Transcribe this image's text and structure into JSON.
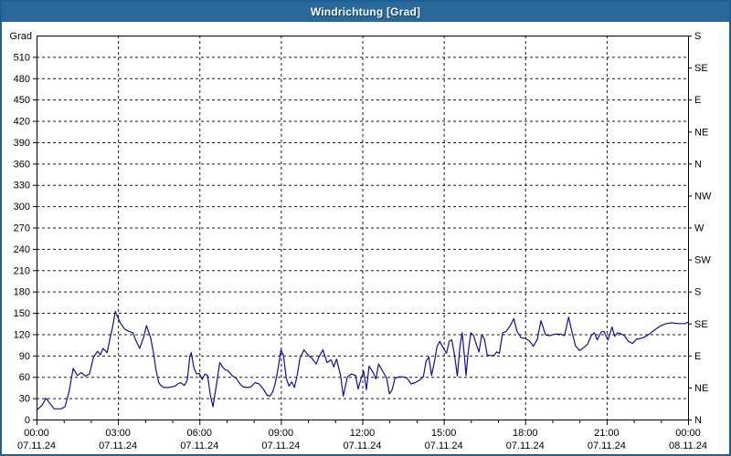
{
  "window": {
    "title": "Windrichtung [Grad]"
  },
  "colors": {
    "titlebar_bg": "#2a699c",
    "frame_border": "#1e5f94",
    "title_text": "#ffffff",
    "title_shadow": "#123f66",
    "plot_bg": "#ffffff",
    "axis": "#000000",
    "grid": "#000000",
    "tick_text": "#000000",
    "line": "#0f0fa8"
  },
  "chart_data": {
    "type": "line",
    "title": "Windrichtung [Grad]",
    "ylabel_left": "Grad",
    "ylim": [
      0,
      540
    ],
    "xlim_hours": [
      0,
      24
    ],
    "grid": "dashed",
    "y_left_ticks": [
      0,
      30,
      60,
      90,
      120,
      150,
      180,
      210,
      240,
      270,
      300,
      330,
      360,
      390,
      420,
      450,
      480,
      510
    ],
    "y_right_ticks": [
      {
        "deg": 0,
        "label": "N"
      },
      {
        "deg": 45,
        "label": "NE"
      },
      {
        "deg": 90,
        "label": "E"
      },
      {
        "deg": 135,
        "label": "SE"
      },
      {
        "deg": 180,
        "label": "S"
      },
      {
        "deg": 225,
        "label": "SW"
      },
      {
        "deg": 270,
        "label": "W"
      },
      {
        "deg": 315,
        "label": "NW"
      },
      {
        "deg": 360,
        "label": "N"
      },
      {
        "deg": 405,
        "label": "NE"
      },
      {
        "deg": 450,
        "label": "E"
      },
      {
        "deg": 495,
        "label": "SE"
      },
      {
        "deg": 540,
        "label": "S"
      }
    ],
    "x_major_ticks": [
      {
        "hours": 0,
        "time": "00:00",
        "date": "07.11.24"
      },
      {
        "hours": 3,
        "time": "03:00",
        "date": "07.11.24"
      },
      {
        "hours": 6,
        "time": "06:00",
        "date": "07.11.24"
      },
      {
        "hours": 9,
        "time": "09:00",
        "date": "07.11.24"
      },
      {
        "hours": 12,
        "time": "12:00",
        "date": "07.11.24"
      },
      {
        "hours": 15,
        "time": "15:00",
        "date": "07.11.24"
      },
      {
        "hours": 18,
        "time": "18:00",
        "date": "07.11.24"
      },
      {
        "hours": 21,
        "time": "21:00",
        "date": "07.11.24"
      },
      {
        "hours": 24,
        "time": "00:00",
        "date": "08.11.24"
      }
    ],
    "x_minor_step_hours": 1,
    "series": [
      {
        "name": "Windrichtung",
        "unit": "Grad",
        "points": [
          [
            0,
            13
          ],
          [
            0.2,
            20
          ],
          [
            0.35,
            30
          ],
          [
            0.5,
            22
          ],
          [
            0.65,
            15
          ],
          [
            0.9,
            15
          ],
          [
            1.05,
            18
          ],
          [
            1.2,
            40
          ],
          [
            1.35,
            72
          ],
          [
            1.5,
            62
          ],
          [
            1.65,
            66
          ],
          [
            1.8,
            61
          ],
          [
            1.95,
            64
          ],
          [
            2.1,
            88
          ],
          [
            2.25,
            96
          ],
          [
            2.35,
            91
          ],
          [
            2.45,
            100
          ],
          [
            2.6,
            94
          ],
          [
            2.7,
            113
          ],
          [
            2.8,
            130
          ],
          [
            2.9,
            152
          ],
          [
            3,
            143
          ],
          [
            3.1,
            135
          ],
          [
            3.25,
            127
          ],
          [
            3.4,
            124
          ],
          [
            3.55,
            122
          ],
          [
            3.65,
            112
          ],
          [
            3.8,
            100
          ],
          [
            3.95,
            116
          ],
          [
            4.05,
            132
          ],
          [
            4.2,
            115
          ],
          [
            4.3,
            96
          ],
          [
            4.4,
            70
          ],
          [
            4.5,
            52
          ],
          [
            4.6,
            47
          ],
          [
            4.7,
            45
          ],
          [
            4.85,
            45
          ],
          [
            5,
            46
          ],
          [
            5.1,
            47
          ],
          [
            5.2,
            50
          ],
          [
            5.3,
            52
          ],
          [
            5.45,
            48
          ],
          [
            5.55,
            55
          ],
          [
            5.65,
            90
          ],
          [
            5.7,
            94
          ],
          [
            5.8,
            72
          ],
          [
            5.9,
            64
          ],
          [
            6,
            65
          ],
          [
            6.1,
            56
          ],
          [
            6.2,
            64
          ],
          [
            6.3,
            62
          ],
          [
            6.4,
            35
          ],
          [
            6.5,
            18
          ],
          [
            6.65,
            55
          ],
          [
            6.75,
            80
          ],
          [
            6.85,
            74
          ],
          [
            6.95,
            70
          ],
          [
            7.05,
            69
          ],
          [
            7.2,
            62
          ],
          [
            7.35,
            58
          ],
          [
            7.5,
            50
          ],
          [
            7.6,
            46
          ],
          [
            7.75,
            45
          ],
          [
            7.9,
            46
          ],
          [
            8.05,
            52
          ],
          [
            8.2,
            50
          ],
          [
            8.35,
            43
          ],
          [
            8.5,
            34
          ],
          [
            8.6,
            33
          ],
          [
            8.7,
            39
          ],
          [
            8.8,
            52
          ],
          [
            8.9,
            72
          ],
          [
            9,
            98
          ],
          [
            9.1,
            90
          ],
          [
            9.2,
            58
          ],
          [
            9.3,
            47
          ],
          [
            9.4,
            53
          ],
          [
            9.5,
            45
          ],
          [
            9.6,
            62
          ],
          [
            9.7,
            86
          ],
          [
            9.85,
            98
          ],
          [
            10,
            91
          ],
          [
            10.15,
            86
          ],
          [
            10.3,
            78
          ],
          [
            10.4,
            88
          ],
          [
            10.55,
            98
          ],
          [
            10.7,
            80
          ],
          [
            10.85,
            84
          ],
          [
            10.95,
            74
          ],
          [
            11.05,
            85
          ],
          [
            11.2,
            62
          ],
          [
            11.3,
            33
          ],
          [
            11.45,
            60
          ],
          [
            11.6,
            64
          ],
          [
            11.75,
            62
          ],
          [
            11.85,
            43
          ],
          [
            11.95,
            57
          ],
          [
            12.05,
            68
          ],
          [
            12.15,
            42
          ],
          [
            12.25,
            75
          ],
          [
            12.4,
            66
          ],
          [
            12.5,
            57
          ],
          [
            12.6,
            78
          ],
          [
            12.75,
            68
          ],
          [
            12.9,
            58
          ],
          [
            13,
            36
          ],
          [
            13.1,
            42
          ],
          [
            13.2,
            58
          ],
          [
            13.35,
            60
          ],
          [
            13.5,
            60
          ],
          [
            13.65,
            58
          ],
          [
            13.8,
            50
          ],
          [
            13.95,
            52
          ],
          [
            14.1,
            55
          ],
          [
            14.25,
            60
          ],
          [
            14.35,
            82
          ],
          [
            14.45,
            88
          ],
          [
            14.55,
            62
          ],
          [
            14.65,
            80
          ],
          [
            14.75,
            102
          ],
          [
            14.85,
            110
          ],
          [
            14.95,
            103
          ],
          [
            15.1,
            93
          ],
          [
            15.2,
            110
          ],
          [
            15.3,
            112
          ],
          [
            15.4,
            90
          ],
          [
            15.5,
            61
          ],
          [
            15.6,
            103
          ],
          [
            15.68,
            122
          ],
          [
            15.76,
            90
          ],
          [
            15.82,
            62
          ],
          [
            15.9,
            95
          ],
          [
            16,
            122
          ],
          [
            16.1,
            118
          ],
          [
            16.22,
            103
          ],
          [
            16.3,
            95
          ],
          [
            16.4,
            119
          ],
          [
            16.5,
            113
          ],
          [
            16.6,
            91
          ],
          [
            16.7,
            90
          ],
          [
            16.85,
            90
          ],
          [
            16.95,
            95
          ],
          [
            17.05,
            93
          ],
          [
            17.17,
            122
          ],
          [
            17.3,
            124
          ],
          [
            17.45,
            132
          ],
          [
            17.58,
            142
          ],
          [
            17.7,
            124
          ],
          [
            17.85,
            115
          ],
          [
            18,
            114
          ],
          [
            18.15,
            111
          ],
          [
            18.3,
            103
          ],
          [
            18.45,
            113
          ],
          [
            18.58,
            139
          ],
          [
            18.75,
            119
          ],
          [
            18.9,
            118
          ],
          [
            19.1,
            120
          ],
          [
            19.3,
            120
          ],
          [
            19.45,
            118
          ],
          [
            19.6,
            144
          ],
          [
            19.7,
            127
          ],
          [
            19.85,
            104
          ],
          [
            20,
            97
          ],
          [
            20.15,
            101
          ],
          [
            20.3,
            106
          ],
          [
            20.45,
            119
          ],
          [
            20.55,
            122
          ],
          [
            20.65,
            112
          ],
          [
            20.8,
            123
          ],
          [
            20.9,
            124
          ],
          [
            21.05,
            112
          ],
          [
            21.2,
            130
          ],
          [
            21.3,
            117
          ],
          [
            21.4,
            122
          ],
          [
            21.5,
            121
          ],
          [
            21.65,
            118
          ],
          [
            21.8,
            110
          ],
          [
            21.95,
            107
          ],
          [
            22.1,
            113
          ],
          [
            22.25,
            114
          ],
          [
            22.4,
            116
          ],
          [
            22.6,
            121
          ],
          [
            22.8,
            127
          ],
          [
            23,
            132
          ],
          [
            23.2,
            135
          ],
          [
            23.4,
            136
          ],
          [
            23.65,
            135
          ],
          [
            23.9,
            135
          ],
          [
            24,
            137
          ]
        ]
      }
    ]
  }
}
